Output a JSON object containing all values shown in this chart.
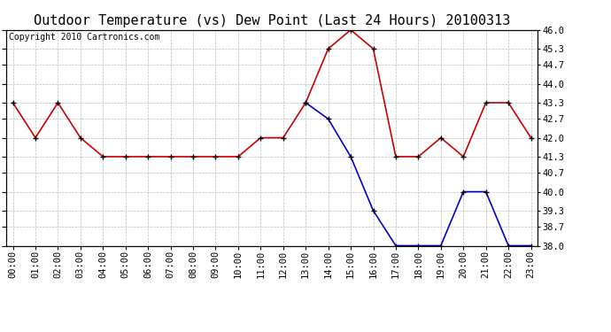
{
  "title": "Outdoor Temperature (vs) Dew Point (Last 24 Hours) 20100313",
  "copyright_text": "Copyright 2010 Cartronics.com",
  "background_color": "#ffffff",
  "plot_bg_color": "#ffffff",
  "grid_color": "#bbbbbb",
  "hours": [
    0,
    1,
    2,
    3,
    4,
    5,
    6,
    7,
    8,
    9,
    10,
    11,
    12,
    13,
    14,
    15,
    16,
    17,
    18,
    19,
    20,
    21,
    22,
    23
  ],
  "temp_red": [
    43.3,
    42.0,
    43.3,
    42.0,
    41.3,
    41.3,
    41.3,
    41.3,
    41.3,
    41.3,
    41.3,
    42.0,
    42.0,
    43.3,
    45.3,
    46.0,
    45.3,
    41.3,
    41.3,
    42.0,
    41.3,
    43.3,
    43.3,
    42.0
  ],
  "dew_blue_hours": [
    13,
    14,
    15,
    16,
    17,
    18,
    19,
    20,
    21,
    22,
    23
  ],
  "dew_blue": [
    43.3,
    42.7,
    41.3,
    39.3,
    38.0,
    38.0,
    38.0,
    40.0,
    40.0,
    38.0,
    38.0
  ],
  "red_color": "#cc0000",
  "blue_color": "#0000cc",
  "ylim": [
    38.0,
    46.0
  ],
  "yticks": [
    38.0,
    38.7,
    39.3,
    40.0,
    40.7,
    41.3,
    42.0,
    42.7,
    43.3,
    44.0,
    44.7,
    45.3,
    46.0
  ],
  "title_fontsize": 11,
  "copyright_fontsize": 7,
  "tick_fontsize": 7.5,
  "line_width": 1.2,
  "marker_size": 5
}
